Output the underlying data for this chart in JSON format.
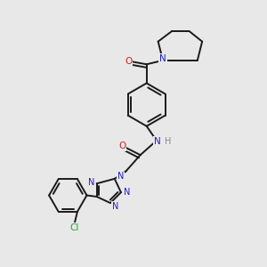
{
  "bg_color": "#e8e8e8",
  "bond_color": "#1a1a1a",
  "N_color": "#2020cc",
  "O_color": "#cc2020",
  "Cl_color": "#22aa22",
  "H_color": "#888888",
  "line_width": 1.4,
  "figsize": [
    3.0,
    3.0
  ],
  "dpi": 100,
  "xlim": [
    0,
    10
  ],
  "ylim": [
    0,
    10
  ]
}
